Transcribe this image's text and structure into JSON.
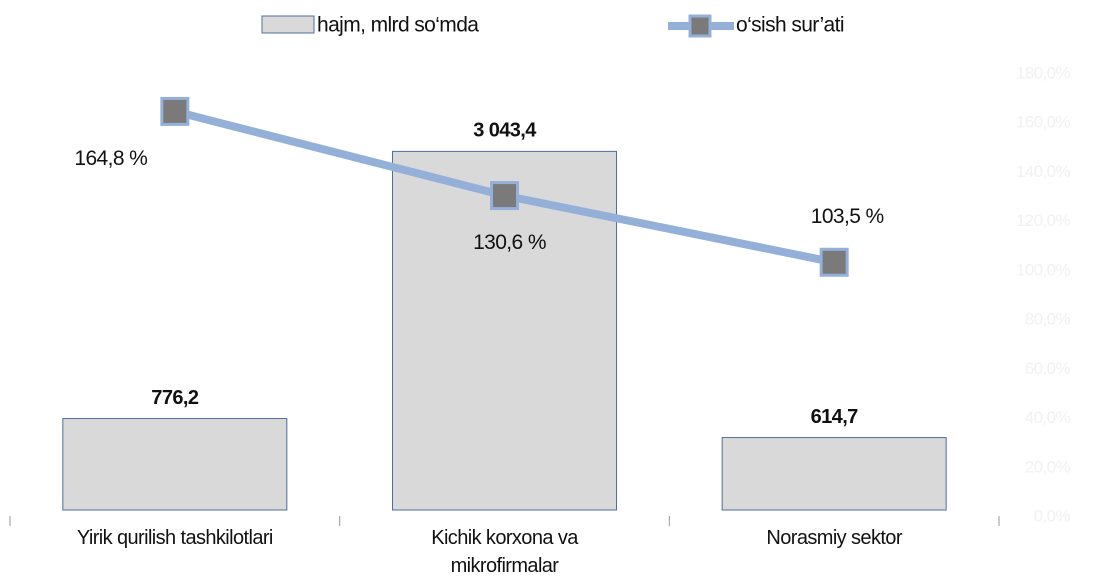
{
  "chart_data": {
    "type": "combo",
    "categories": [
      "Yirik qurilish tashkilotlari",
      "Kichik korxona va mikrofirmalar",
      "Norasmiy sektor"
    ],
    "series": [
      {
        "name": "hajm, mlrd so‘mda",
        "type": "bar",
        "color": "#d9d9d9",
        "edge_color": "#4f6e9f",
        "values": [
          776.2,
          3043.4,
          614.7
        ],
        "value_labels": [
          "776,2",
          "3 043,4",
          "614,7"
        ]
      },
      {
        "name": "o‘sish sur’ati",
        "type": "line",
        "axis": "y2",
        "color": "#94b0d8",
        "marker_color": "#7a7a7a",
        "values": [
          164.8,
          130.6,
          103.5
        ],
        "value_labels": [
          "164,8 %",
          "130,6 %",
          "103,5 %"
        ]
      }
    ],
    "ylim": [
      0,
      3700
    ],
    "y2lim": [
      0,
      180
    ],
    "y2ticks": [
      {
        "value": 0,
        "label": "0,0%"
      },
      {
        "value": 20,
        "label": "20,0%"
      },
      {
        "value": 40,
        "label": "40,0%"
      },
      {
        "value": 60,
        "label": "60,0%"
      },
      {
        "value": 80,
        "label": "80,0%"
      },
      {
        "value": 100,
        "label": "100,0%"
      },
      {
        "value": 120,
        "label": "120,0%"
      },
      {
        "value": 140,
        "label": "140,0%"
      },
      {
        "value": 160,
        "label": "160,0%"
      },
      {
        "value": 180,
        "label": "180,0%"
      }
    ],
    "legend": "top"
  }
}
